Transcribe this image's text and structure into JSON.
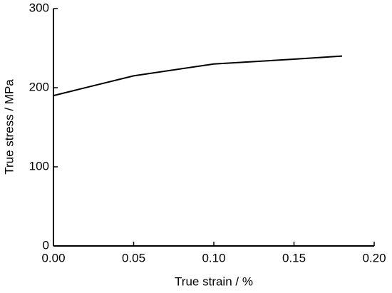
{
  "chart_data": {
    "type": "line",
    "x_label": "True strain / %",
    "y_label": "True stress / MPa",
    "x": [
      0,
      0.05,
      0.1,
      0.15,
      0.18
    ],
    "series": [
      {
        "color": "#000000",
        "values": [
          190,
          215,
          230,
          236,
          240
        ]
      }
    ],
    "xlim": [
      0,
      0.2
    ],
    "ylim": [
      0,
      300
    ],
    "xticks": [
      {
        "value": 0,
        "label": "0.00"
      },
      {
        "value": 0.05,
        "label": "0.05"
      },
      {
        "value": 0.1,
        "label": "0.10"
      },
      {
        "value": 0.15,
        "label": "0.15"
      },
      {
        "value": 0.2,
        "label": "0.20"
      }
    ],
    "yticks": [
      0,
      100,
      200,
      300
    ]
  }
}
